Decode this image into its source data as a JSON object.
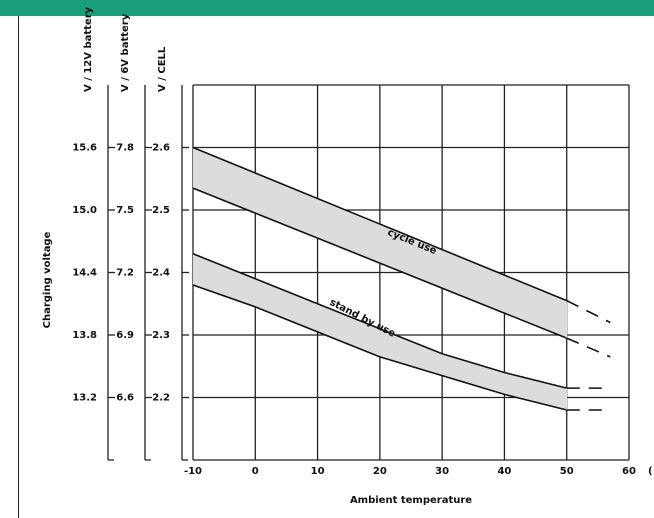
{
  "chart_data": {
    "type": "area",
    "xlabel": "Ambient temperature",
    "ylabel": "Charging voltage",
    "x_unit_partial": "(",
    "xlim": [
      -10,
      60
    ],
    "ylim": [
      2.1,
      2.7
    ],
    "x_ticks": [
      "-10",
      "0",
      "10",
      "20",
      "30",
      "40",
      "50",
      "60"
    ],
    "x_tick_values": [
      -10,
      0,
      10,
      20,
      30,
      40,
      50,
      60
    ],
    "grid": true,
    "axes": [
      {
        "title": "V / 12V battery",
        "ticks": [
          "15.6",
          "15.0",
          "14.4",
          "13.8",
          "13.2"
        ]
      },
      {
        "title": "V / 6V battery",
        "ticks": [
          "7.8",
          "7.5",
          "7.2",
          "6.9",
          "6.6"
        ]
      },
      {
        "title": "V / CELL",
        "ticks": [
          "2.6",
          "2.5",
          "2.4",
          "2.3",
          "2.2"
        ]
      }
    ],
    "axis_tick_values": [
      2.6,
      2.5,
      2.4,
      2.3,
      2.2
    ],
    "bands": [
      {
        "name": "cycle use",
        "x": [
          -10,
          50
        ],
        "upper": [
          2.6,
          2.355
        ],
        "lower": [
          2.535,
          2.295
        ],
        "extrapolated_upper": [
          [
            50,
            2.355
          ],
          [
            57,
            2.32
          ]
        ],
        "extrapolated_lower": [
          [
            50,
            2.295
          ],
          [
            57,
            2.265
          ]
        ],
        "label_at": [
          25,
          2.445
        ]
      },
      {
        "name": "stand by use",
        "x": [
          -10,
          0,
          10,
          20,
          30,
          40,
          50
        ],
        "upper": [
          2.43,
          2.39,
          2.35,
          2.31,
          2.27,
          2.24,
          2.215
        ],
        "lower": [
          2.38,
          2.345,
          2.305,
          2.265,
          2.235,
          2.205,
          2.18
        ],
        "extrapolated_upper": [
          [
            50,
            2.215
          ],
          [
            57,
            2.215
          ]
        ],
        "extrapolated_lower": [
          [
            50,
            2.18
          ],
          [
            57,
            2.18
          ]
        ],
        "label_at": [
          17,
          2.323
        ]
      }
    ],
    "colors": {
      "band_fill": "#dcdcdc",
      "line": "#111111",
      "grid": "#222222",
      "header": "#1a9d7b"
    }
  }
}
